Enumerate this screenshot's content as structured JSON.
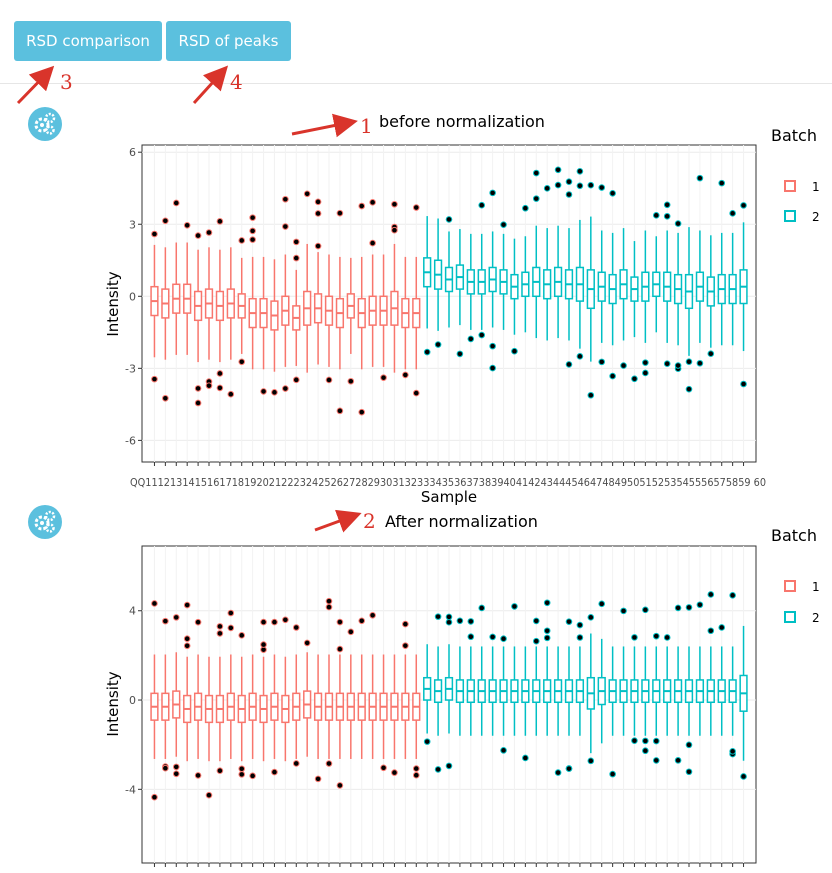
{
  "toolbar": {
    "rsd_comparison_label": "RSD comparison",
    "rsd_peaks_label": "RSD of peaks"
  },
  "annotations": {
    "a1": "1",
    "a2": "2",
    "a3": "3",
    "a4": "4"
  },
  "colors": {
    "batch1": "#f8766d",
    "batch2": "#00bfc4",
    "button": "#5bc0de",
    "annotation": "#d9342b"
  },
  "icons": [
    "settings-gears-icon"
  ],
  "legend": {
    "title": "Batch",
    "items": [
      "1",
      "2"
    ]
  },
  "chart_data": [
    {
      "type": "boxplot",
      "title": "before normalization",
      "xlabel": "Sample",
      "ylabel": "Intensity",
      "ylim": [
        -6.9,
        6.3
      ],
      "yticks": [
        -6,
        -3,
        0,
        3,
        6
      ],
      "xtick_label_text": "QQ11121314151617181920212223242526272829303132333435363738394041424344454647484950515253545556575859 60",
      "grid": true,
      "legend_position": "right",
      "batch_split_index": 25,
      "medians": [
        -0.2,
        -0.3,
        -0.1,
        -0.1,
        -0.4,
        -0.3,
        -0.4,
        -0.3,
        -0.4,
        -0.7,
        -0.7,
        -0.8,
        -0.6,
        -0.9,
        -0.5,
        -0.5,
        -0.6,
        -0.7,
        -0.4,
        -0.7,
        -0.6,
        -0.6,
        -0.5,
        -0.7,
        -0.7,
        1.0,
        0.9,
        0.7,
        0.8,
        0.6,
        0.6,
        0.7,
        0.6,
        0.4,
        0.5,
        0.6,
        0.5,
        0.6,
        0.5,
        0.5,
        0.3,
        0.4,
        0.3,
        0.5,
        0.3,
        0.4,
        0.5,
        0.4,
        0.3,
        0.2,
        0.4,
        0.2,
        0.3,
        0.3,
        0.4
      ],
      "spreads": [
        0.6,
        0.6,
        0.6,
        0.6,
        0.6,
        0.6,
        0.6,
        0.6,
        0.5,
        0.6,
        0.6,
        0.6,
        0.6,
        0.5,
        0.7,
        0.6,
        0.6,
        0.6,
        0.5,
        0.6,
        0.6,
        0.6,
        0.7,
        0.6,
        0.6,
        0.6,
        0.6,
        0.5,
        0.5,
        0.5,
        0.5,
        0.5,
        0.5,
        0.5,
        0.5,
        0.6,
        0.6,
        0.6,
        0.6,
        0.7,
        0.8,
        0.6,
        0.6,
        0.6,
        0.5,
        0.6,
        0.5,
        0.6,
        0.6,
        0.7,
        0.6,
        0.6,
        0.6,
        0.6,
        0.7
      ]
    },
    {
      "type": "boxplot",
      "title": "After normalization",
      "xlabel": "",
      "ylabel": "Intensity",
      "ylim": [
        -7.3,
        6.9
      ],
      "yticks": [
        -4,
        0,
        4
      ],
      "grid": true,
      "legend_position": "right",
      "batch_split_index": 25,
      "medians": [
        -0.3,
        -0.3,
        -0.2,
        -0.4,
        -0.3,
        -0.4,
        -0.4,
        -0.3,
        -0.4,
        -0.3,
        -0.4,
        -0.3,
        -0.4,
        -0.3,
        -0.2,
        -0.3,
        -0.3,
        -0.3,
        -0.3,
        -0.3,
        -0.3,
        -0.3,
        -0.3,
        -0.3,
        -0.3,
        0.5,
        0.4,
        0.5,
        0.4,
        0.4,
        0.4,
        0.4,
        0.4,
        0.4,
        0.4,
        0.4,
        0.4,
        0.4,
        0.4,
        0.4,
        0.3,
        0.4,
        0.4,
        0.4,
        0.4,
        0.4,
        0.4,
        0.4,
        0.4,
        0.4,
        0.4,
        0.4,
        0.4,
        0.4,
        0.3
      ],
      "spreads": [
        0.6,
        0.6,
        0.6,
        0.6,
        0.6,
        0.6,
        0.6,
        0.6,
        0.6,
        0.6,
        0.6,
        0.6,
        0.6,
        0.6,
        0.6,
        0.6,
        0.6,
        0.6,
        0.6,
        0.6,
        0.6,
        0.6,
        0.6,
        0.6,
        0.6,
        0.5,
        0.5,
        0.5,
        0.5,
        0.5,
        0.5,
        0.5,
        0.5,
        0.5,
        0.5,
        0.5,
        0.5,
        0.5,
        0.5,
        0.5,
        0.7,
        0.6,
        0.5,
        0.5,
        0.5,
        0.5,
        0.5,
        0.5,
        0.5,
        0.5,
        0.5,
        0.5,
        0.5,
        0.5,
        0.8
      ]
    }
  ]
}
